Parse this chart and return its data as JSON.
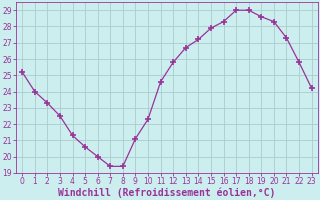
{
  "x": [
    0,
    1,
    2,
    3,
    4,
    5,
    6,
    7,
    8,
    9,
    10,
    11,
    12,
    13,
    14,
    15,
    16,
    17,
    18,
    19,
    20,
    21,
    22,
    23
  ],
  "y": [
    25.2,
    24.0,
    23.3,
    22.5,
    21.3,
    20.6,
    20.0,
    19.4,
    19.4,
    21.1,
    22.3,
    24.6,
    25.8,
    26.7,
    27.2,
    27.9,
    28.3,
    29.0,
    29.0,
    28.6,
    28.3,
    27.3,
    25.8,
    24.2
  ],
  "line_color": "#993399",
  "marker": "+",
  "marker_size": 4,
  "marker_linewidth": 1.2,
  "bg_color": "#cceeee",
  "grid_color": "#aacccc",
  "xlabel": "Windchill (Refroidissement éolien,°C)",
  "ylabel": "",
  "title": "",
  "xlim": [
    -0.5,
    23.5
  ],
  "ylim": [
    19,
    29.5
  ],
  "yticks": [
    19,
    20,
    21,
    22,
    23,
    24,
    25,
    26,
    27,
    28,
    29
  ],
  "xticks": [
    0,
    1,
    2,
    3,
    4,
    5,
    6,
    7,
    8,
    9,
    10,
    11,
    12,
    13,
    14,
    15,
    16,
    17,
    18,
    19,
    20,
    21,
    22,
    23
  ],
  "tick_color": "#993399",
  "tick_label_fontsize": 5.5,
  "xlabel_fontsize": 7.0,
  "line_width": 0.9
}
